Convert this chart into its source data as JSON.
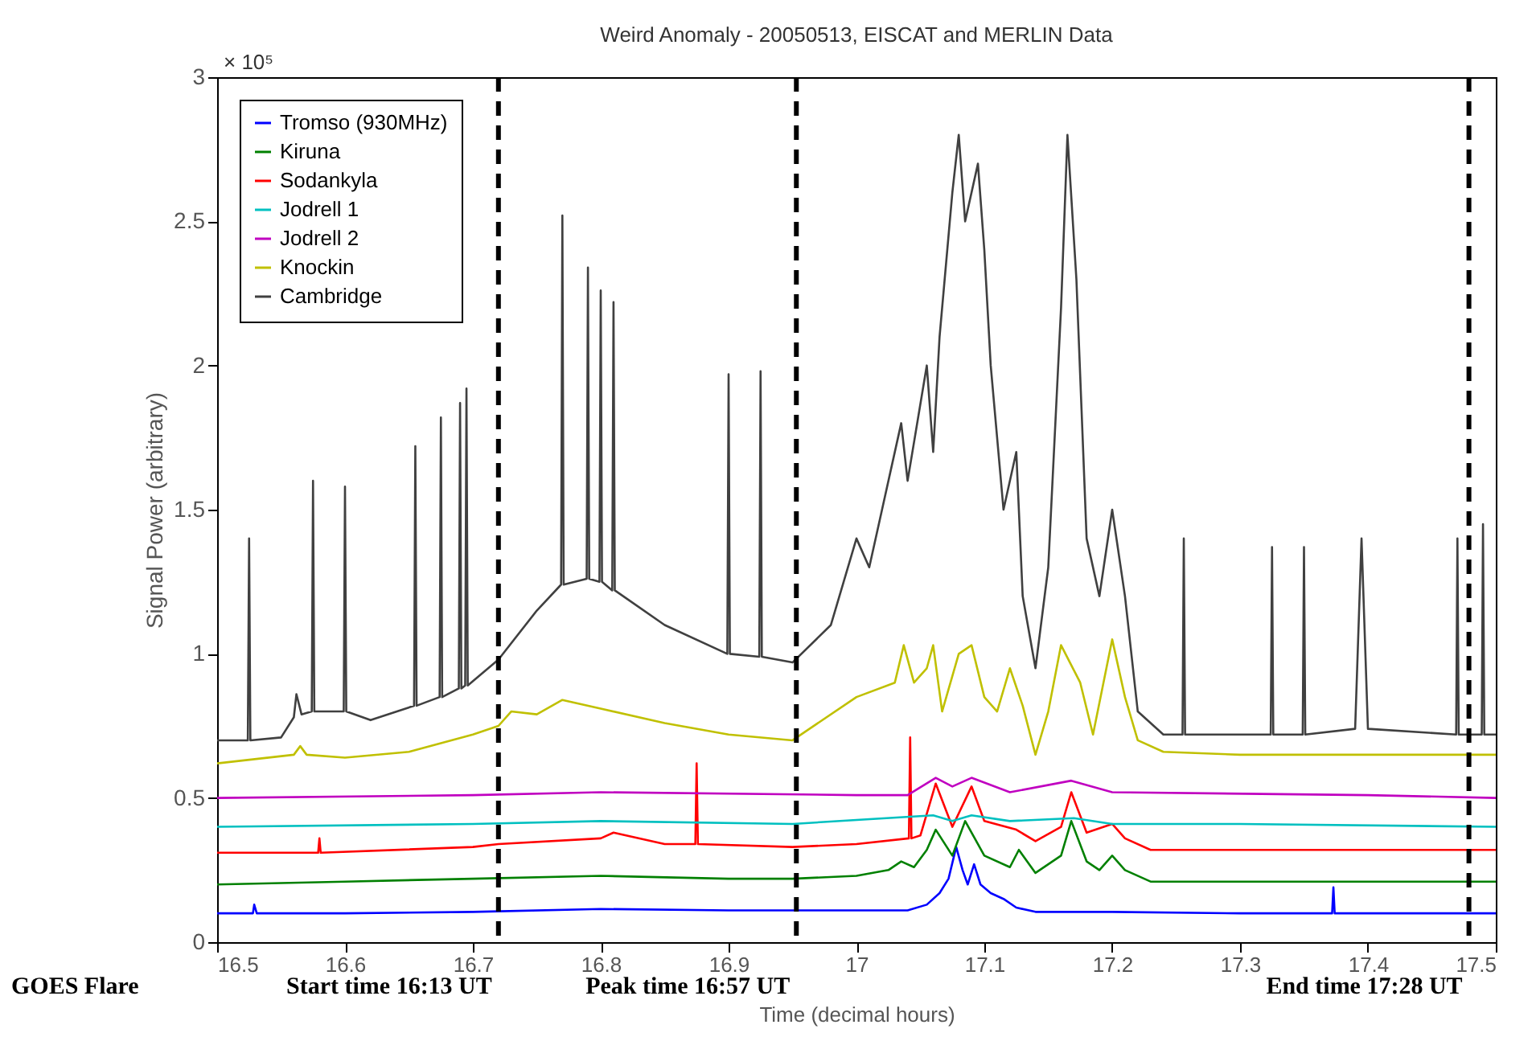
{
  "chart_data": {
    "type": "line",
    "title": "Weird Anomaly - 20050513, EISCAT and MERLIN Data",
    "xlabel": "Time (decimal hours)",
    "ylabel": "Signal Power (arbitrary)",
    "xlim": [
      16.5,
      17.5
    ],
    "xticks": [
      16.5,
      16.6,
      16.7,
      16.8,
      16.9,
      17,
      17.1,
      17.2,
      17.3,
      17.4,
      17.5
    ],
    "ylim": [
      0,
      3
    ],
    "yticks": [
      0,
      0.5,
      1,
      1.5,
      2,
      2.5,
      3
    ],
    "grid": false,
    "legend": "top left",
    "line_style": "solid",
    "marker": "none",
    "ref_lines": [
      {
        "axis": "x",
        "value": 16.72,
        "color": "#000000",
        "line_style": "dashed"
      },
      {
        "axis": "x",
        "value": 16.953,
        "color": "#000000",
        "line_style": "dashed"
      },
      {
        "axis": "x",
        "value": 17.479,
        "color": "#000000",
        "line_style": "dashed"
      }
    ],
    "annotations": [
      "× 10⁵",
      "GOES Flare",
      "Start time 16:13 UT",
      "Peak time 16:57 UT",
      "End time 17:28 UT"
    ],
    "series": [
      {
        "name": "Tromso (930MHz)",
        "color": "#0000ff",
        "x": [
          16.5,
          16.528,
          16.529,
          16.531,
          16.6,
          16.7,
          16.8,
          16.9,
          16.95,
          17.0,
          17.04,
          17.055,
          17.065,
          17.072,
          17.078,
          17.083,
          17.087,
          17.092,
          17.097,
          17.105,
          17.115,
          17.125,
          17.14,
          17.2,
          17.3,
          17.372,
          17.373,
          17.374,
          17.5
        ],
        "values": [
          0.1,
          0.1,
          0.13,
          0.1,
          0.1,
          0.105,
          0.115,
          0.11,
          0.11,
          0.11,
          0.11,
          0.13,
          0.17,
          0.22,
          0.33,
          0.25,
          0.2,
          0.27,
          0.2,
          0.17,
          0.15,
          0.12,
          0.105,
          0.105,
          0.1,
          0.1,
          0.19,
          0.1,
          0.1
        ]
      },
      {
        "name": "Kiruna",
        "color": "#008000",
        "x": [
          16.5,
          16.6,
          16.7,
          16.8,
          16.9,
          16.95,
          17.0,
          17.025,
          17.035,
          17.045,
          17.055,
          17.062,
          17.075,
          17.085,
          17.1,
          17.12,
          17.127,
          17.14,
          17.16,
          17.168,
          17.18,
          17.19,
          17.2,
          17.21,
          17.23,
          17.5
        ],
        "values": [
          0.2,
          0.21,
          0.22,
          0.23,
          0.22,
          0.22,
          0.23,
          0.25,
          0.28,
          0.26,
          0.32,
          0.39,
          0.3,
          0.42,
          0.3,
          0.26,
          0.32,
          0.24,
          0.3,
          0.42,
          0.28,
          0.25,
          0.3,
          0.25,
          0.21,
          0.21
        ]
      },
      {
        "name": "Sodankyla",
        "color": "#ff0000",
        "x": [
          16.5,
          16.579,
          16.58,
          16.581,
          16.7,
          16.72,
          16.8,
          16.81,
          16.85,
          16.874,
          16.875,
          16.876,
          16.95,
          17.0,
          17.041,
          17.042,
          17.043,
          17.05,
          17.062,
          17.075,
          17.09,
          17.1,
          17.125,
          17.14,
          17.16,
          17.168,
          17.18,
          17.2,
          17.21,
          17.23,
          17.5
        ],
        "values": [
          0.31,
          0.31,
          0.36,
          0.31,
          0.33,
          0.34,
          0.36,
          0.38,
          0.34,
          0.34,
          0.62,
          0.34,
          0.33,
          0.34,
          0.36,
          0.71,
          0.36,
          0.37,
          0.55,
          0.4,
          0.54,
          0.42,
          0.39,
          0.35,
          0.4,
          0.52,
          0.38,
          0.41,
          0.36,
          0.32,
          0.32
        ]
      },
      {
        "name": "Jodrell 1",
        "color": "#00c0c0",
        "x": [
          16.5,
          16.7,
          16.8,
          16.95,
          17.06,
          17.075,
          17.09,
          17.12,
          17.17,
          17.2,
          17.3,
          17.5
        ],
        "values": [
          0.4,
          0.41,
          0.42,
          0.41,
          0.44,
          0.42,
          0.44,
          0.42,
          0.43,
          0.41,
          0.41,
          0.4
        ]
      },
      {
        "name": "Jodrell 2",
        "color": "#c000c0",
        "x": [
          16.5,
          16.7,
          16.8,
          17.0,
          17.04,
          17.062,
          17.075,
          17.09,
          17.12,
          17.168,
          17.2,
          17.4,
          17.5
        ],
        "values": [
          0.5,
          0.51,
          0.52,
          0.51,
          0.51,
          0.57,
          0.54,
          0.57,
          0.52,
          0.56,
          0.52,
          0.51,
          0.5
        ]
      },
      {
        "name": "Knockin",
        "color": "#c0c000",
        "x": [
          16.5,
          16.56,
          16.565,
          16.57,
          16.6,
          16.65,
          16.7,
          16.72,
          16.73,
          16.75,
          16.77,
          16.8,
          16.85,
          16.9,
          16.95,
          16.96,
          17.0,
          17.03,
          17.037,
          17.045,
          17.055,
          17.06,
          17.067,
          17.08,
          17.09,
          17.1,
          17.11,
          17.12,
          17.13,
          17.14,
          17.15,
          17.16,
          17.175,
          17.185,
          17.2,
          17.21,
          17.22,
          17.24,
          17.3,
          17.5
        ],
        "values": [
          0.62,
          0.65,
          0.68,
          0.65,
          0.64,
          0.66,
          0.72,
          0.75,
          0.8,
          0.79,
          0.84,
          0.81,
          0.76,
          0.72,
          0.7,
          0.73,
          0.85,
          0.9,
          1.03,
          0.9,
          0.95,
          1.03,
          0.8,
          1.0,
          1.03,
          0.85,
          0.8,
          0.95,
          0.82,
          0.65,
          0.8,
          1.03,
          0.9,
          0.72,
          1.05,
          0.85,
          0.7,
          0.66,
          0.65,
          0.65
        ]
      },
      {
        "name": "Cambridge",
        "color": "#404040",
        "x": [
          16.5,
          16.524,
          16.525,
          16.526,
          16.55,
          16.56,
          16.562,
          16.566,
          16.574,
          16.575,
          16.576,
          16.599,
          16.6,
          16.601,
          16.62,
          16.654,
          16.655,
          16.656,
          16.674,
          16.675,
          16.676,
          16.689,
          16.69,
          16.691,
          16.694,
          16.695,
          16.696,
          16.72,
          16.75,
          16.769,
          16.77,
          16.771,
          16.789,
          16.79,
          16.791,
          16.799,
          16.8,
          16.801,
          16.809,
          16.81,
          16.811,
          16.85,
          16.899,
          16.9,
          16.901,
          16.924,
          16.925,
          16.926,
          16.95,
          16.98,
          17.0,
          17.01,
          17.02,
          17.035,
          17.04,
          17.055,
          17.06,
          17.065,
          17.075,
          17.08,
          17.085,
          17.095,
          17.1,
          17.105,
          17.115,
          17.125,
          17.13,
          17.14,
          17.15,
          17.16,
          17.165,
          17.172,
          17.18,
          17.19,
          17.2,
          17.21,
          17.22,
          17.24,
          17.255,
          17.256,
          17.257,
          17.324,
          17.325,
          17.326,
          17.349,
          17.35,
          17.351,
          17.39,
          17.395,
          17.4,
          17.469,
          17.47,
          17.471,
          17.489,
          17.49,
          17.491,
          17.5
        ],
        "values": [
          0.7,
          0.7,
          1.4,
          0.7,
          0.71,
          0.78,
          0.86,
          0.79,
          0.8,
          1.6,
          0.8,
          0.8,
          1.58,
          0.8,
          0.77,
          0.82,
          1.72,
          0.82,
          0.85,
          1.82,
          0.85,
          0.88,
          1.87,
          0.88,
          0.89,
          1.92,
          0.89,
          0.98,
          1.15,
          1.24,
          2.52,
          1.24,
          1.26,
          2.34,
          1.26,
          1.25,
          2.26,
          1.25,
          1.22,
          2.22,
          1.22,
          1.1,
          1.0,
          1.97,
          1.0,
          0.99,
          1.98,
          0.99,
          0.97,
          1.1,
          1.4,
          1.3,
          1.5,
          1.8,
          1.6,
          2.0,
          1.7,
          2.1,
          2.6,
          2.8,
          2.5,
          2.7,
          2.4,
          2.0,
          1.5,
          1.7,
          1.2,
          0.95,
          1.3,
          2.2,
          2.8,
          2.3,
          1.4,
          1.2,
          1.5,
          1.2,
          0.8,
          0.72,
          0.72,
          1.4,
          0.72,
          0.72,
          1.37,
          0.72,
          0.72,
          1.37,
          0.72,
          0.74,
          1.4,
          0.74,
          0.72,
          1.4,
          0.72,
          0.72,
          1.45,
          0.72,
          0.72
        ]
      }
    ]
  }
}
